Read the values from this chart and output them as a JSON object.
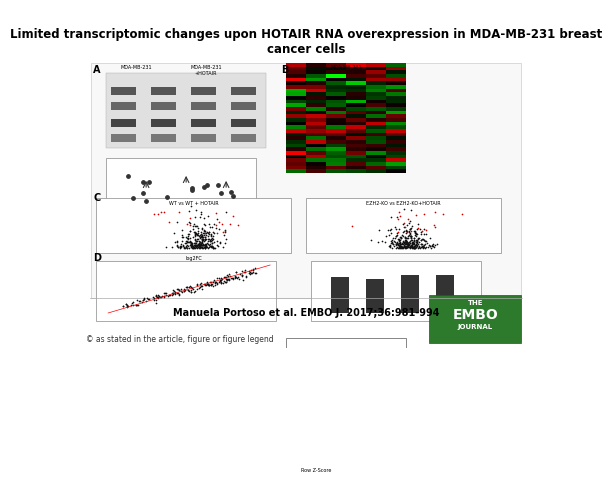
{
  "title": "Limited transcriptomic changes upon HOTAIR RNA overexpression in MDA‑MB‑231 breast\ncancer cells",
  "title_fontsize": 8.5,
  "citation": "Manuela Portoso et al. EMBO J. 2017;36:981-994",
  "citation_fontsize": 7,
  "copyright": "© as stated in the article, figure or figure legend",
  "copyright_fontsize": 5.5,
  "bg_color": "#ffffff",
  "embo_box_color": "#2d7a2d",
  "embo_text_lines": [
    "THE",
    "EMBO",
    "JOURNAL"
  ],
  "panel_A_label": "A",
  "panel_B_label": "B",
  "panel_C_label": "C",
  "panel_D_label": "D"
}
